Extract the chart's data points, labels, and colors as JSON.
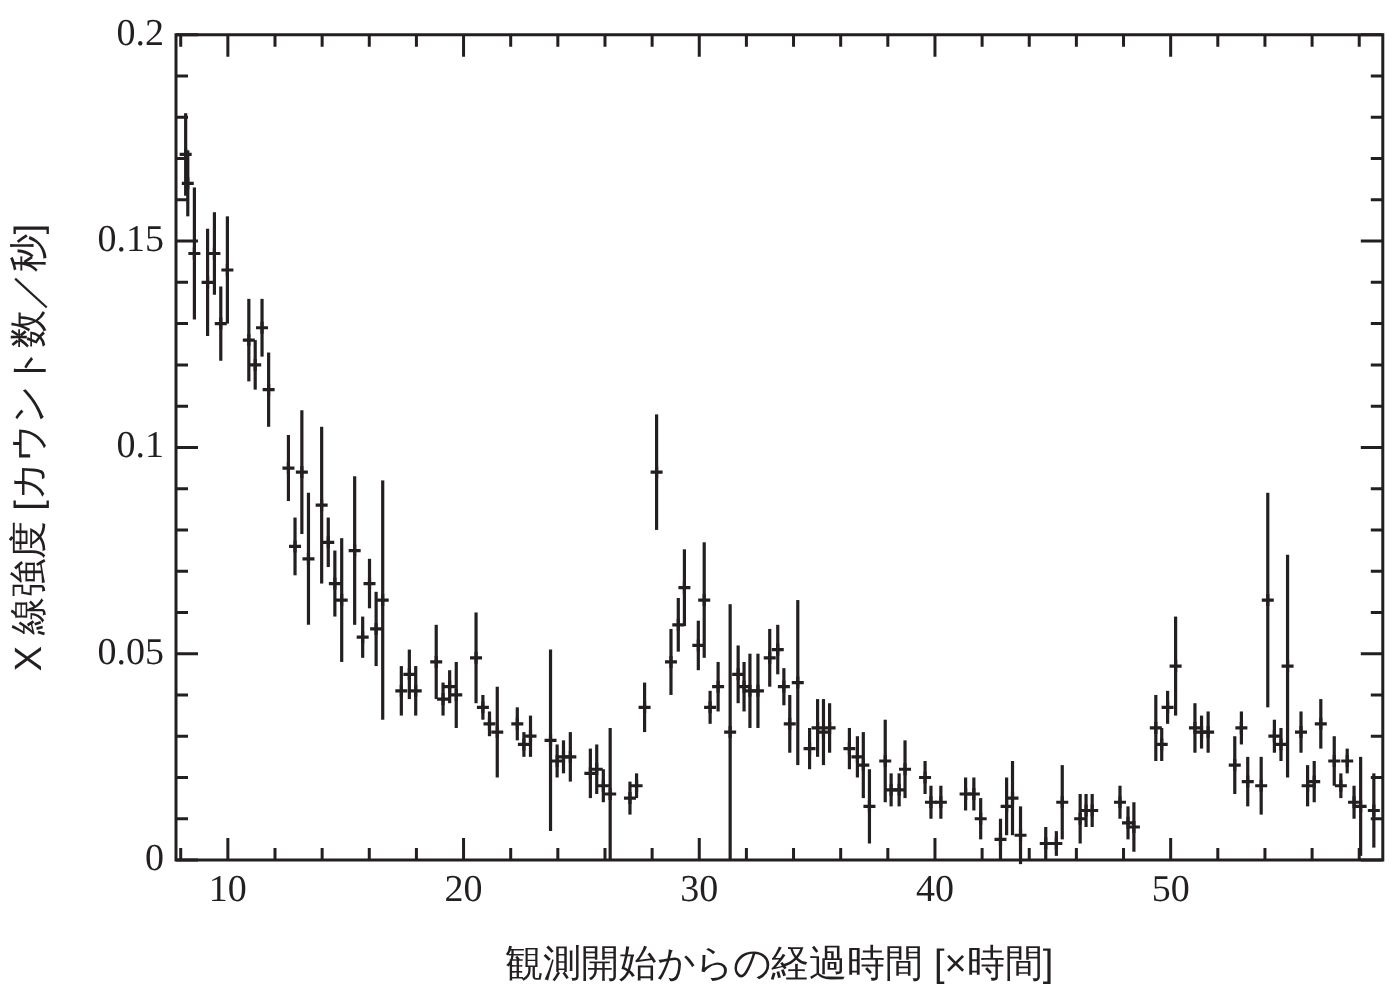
{
  "chart_data": {
    "type": "scatter",
    "xlabel": "観測開始からの経過時間 [×時間]",
    "ylabel": "X 線強度 [カウント数／秒]",
    "xlim": [
      7.8,
      59
    ],
    "ylim": [
      0,
      0.2
    ],
    "xticks": [
      {
        "value": 8,
        "label": null
      },
      10,
      {
        "value": 12,
        "label": null
      },
      {
        "value": 14,
        "label": null
      },
      {
        "value": 16,
        "label": null
      },
      {
        "value": 18,
        "label": null
      },
      20,
      {
        "value": 22,
        "label": null
      },
      {
        "value": 24,
        "label": null
      },
      {
        "value": 26,
        "label": null
      },
      {
        "value": 28,
        "label": null
      },
      30,
      {
        "value": 32,
        "label": null
      },
      {
        "value": 34,
        "label": null
      },
      {
        "value": 36,
        "label": null
      },
      {
        "value": 38,
        "label": null
      },
      40,
      {
        "value": 42,
        "label": null
      },
      {
        "value": 44,
        "label": null
      },
      {
        "value": 46,
        "label": null
      },
      {
        "value": 48,
        "label": null
      },
      50,
      {
        "value": 52,
        "label": null
      },
      {
        "value": 54,
        "label": null
      },
      {
        "value": 56,
        "label": null
      },
      {
        "value": 58,
        "label": null
      }
    ],
    "yticks": [
      0,
      {
        "value": 0.01,
        "label": null
      },
      {
        "value": 0.02,
        "label": null
      },
      {
        "value": 0.03,
        "label": null
      },
      {
        "value": 0.04,
        "label": null
      },
      0.05,
      {
        "value": 0.06,
        "label": null
      },
      {
        "value": 0.07,
        "label": null
      },
      {
        "value": 0.08,
        "label": null
      },
      {
        "value": 0.09,
        "label": null
      },
      0.1,
      {
        "value": 0.11,
        "label": null
      },
      {
        "value": 0.12,
        "label": null
      },
      {
        "value": 0.13,
        "label": null
      },
      {
        "value": 0.14,
        "label": null
      },
      0.15,
      {
        "value": 0.16,
        "label": null
      },
      {
        "value": 0.17,
        "label": null
      },
      {
        "value": 0.18,
        "label": null
      },
      {
        "value": 0.19,
        "label": null
      },
      0.2
    ],
    "grid": false,
    "legend": false,
    "marker": "cross",
    "series": [
      {
        "color": "#231f20",
        "x": [
          8.21,
          8.3,
          8.58,
          9.14,
          9.43,
          9.7,
          9.98,
          10.89,
          11.16,
          11.45,
          11.73,
          12.57,
          12.85,
          13.14,
          13.42,
          13.98,
          14.26,
          14.54,
          14.83,
          15.38,
          15.72,
          16.01,
          16.29,
          16.57,
          17.36,
          17.7,
          17.97,
          18.84,
          19.13,
          19.41,
          19.69,
          20.53,
          20.82,
          21.1,
          21.43,
          22.28,
          22.56,
          22.84,
          23.69,
          23.97,
          24.24,
          24.53,
          25.38,
          25.65,
          25.93,
          26.22,
          27.06,
          27.34,
          27.68,
          28.19,
          28.8,
          29.11,
          29.37,
          29.96,
          30.21,
          30.46,
          30.8,
          31.31,
          31.65,
          31.9,
          32.15,
          32.49,
          32.99,
          33.33,
          33.59,
          33.84,
          34.18,
          34.68,
          35.02,
          35.27,
          35.53,
          36.37,
          36.71,
          36.96,
          37.22,
          37.89,
          38.14,
          38.48,
          38.73,
          39.58,
          39.83,
          40.25,
          41.3,
          41.65,
          41.94,
          42.78,
          43.04,
          43.29,
          43.63,
          44.7,
          45.15,
          45.4,
          46.16,
          46.41,
          46.67,
          47.85,
          48.19,
          48.44,
          49.37,
          49.62,
          49.87,
          50.21,
          51.03,
          51.31,
          51.59,
          52.72,
          53,
          53.27,
          53.84,
          54.12,
          54.4,
          54.68,
          54.96,
          55.53,
          55.81,
          56.09,
          56.37,
          56.94,
          57.22,
          57.49,
          57.78,
          58.06,
          58.62
        ],
        "values": [
          0.171,
          0.164,
          0.147,
          0.14,
          0.147,
          0.13,
          0.143,
          0.126,
          0.12,
          0.129,
          0.114,
          0.095,
          0.076,
          0.094,
          0.073,
          0.086,
          0.077,
          0.067,
          0.063,
          0.075,
          0.054,
          0.067,
          0.056,
          0.063,
          0.041,
          0.045,
          0.041,
          0.048,
          0.039,
          0.042,
          0.04,
          0.049,
          0.037,
          0.033,
          0.031,
          0.033,
          0.028,
          0.03,
          0.029,
          0.024,
          0.025,
          0.025,
          0.021,
          0.022,
          0.018,
          0.016,
          0.015,
          0.018,
          0.037,
          0.094,
          0.048,
          0.057,
          0.066,
          0.052,
          0.063,
          0.037,
          0.042,
          0.031,
          0.045,
          0.042,
          0.041,
          0.041,
          0.049,
          0.051,
          0.042,
          0.033,
          0.043,
          0.027,
          0.032,
          0.031,
          0.032,
          0.027,
          0.025,
          0.023,
          0.013,
          0.024,
          0.017,
          0.017,
          0.022,
          0.02,
          0.014,
          0.014,
          0.016,
          0.016,
          0.01,
          0.005,
          0.013,
          0.015,
          0.006,
          0.004,
          0.004,
          0.014,
          0.01,
          0.012,
          0.012,
          0.014,
          0.009,
          0.008,
          0.032,
          0.028,
          0.037,
          0.047,
          0.032,
          0.031,
          0.031,
          0.023,
          0.032,
          0.019,
          0.018,
          0.063,
          0.03,
          0.028,
          0.047,
          0.031,
          0.018,
          0.019,
          0.033,
          0.024,
          0.018,
          0.024,
          0.014,
          0.013,
          0.012
        ],
        "errors": [
          0.01,
          0.008,
          0.016,
          0.013,
          0.01,
          0.009,
          0.013,
          0.01,
          0.006,
          0.007,
          0.009,
          0.008,
          0.007,
          0.015,
          0.016,
          0.019,
          0.006,
          0.008,
          0.015,
          0.018,
          0.005,
          0.006,
          0.009,
          0.029,
          0.006,
          0.006,
          0.006,
          0.009,
          0.004,
          0.004,
          0.008,
          0.011,
          0.003,
          0.003,
          0.011,
          0.004,
          0.003,
          0.005,
          0.022,
          0.004,
          0.004,
          0.006,
          0.006,
          0.006,
          0.004,
          0.016,
          0.004,
          0.003,
          0.006,
          0.014,
          0.008,
          0.0065,
          0.0093,
          0.006,
          0.014,
          0.004,
          0.006,
          0.031,
          0.007,
          0.006,
          0.009,
          0.009,
          0.007,
          0.006,
          0.0045,
          0.007,
          0.02,
          0.005,
          0.007,
          0.008,
          0.006,
          0.005,
          0.005,
          0.008,
          0.009,
          0.01,
          0.004,
          0.004,
          0.007,
          0.004,
          0.004,
          0.004,
          0.004,
          0.004,
          0.005,
          0.005,
          0.007,
          0.009,
          0.007,
          0.004,
          0.003,
          0.009,
          0.006,
          0.004,
          0.004,
          0.004,
          0.004,
          0.006,
          0.008,
          0.004,
          0.004,
          0.012,
          0.006,
          0.004,
          0.005,
          0.007,
          0.004,
          0.006,
          0.007,
          0.026,
          0.004,
          0.004,
          0.027,
          0.005,
          0.005,
          0.005,
          0.006,
          0.006,
          0.003,
          0.003,
          0.004,
          0.012,
          0.009
        ]
      }
    ]
  }
}
